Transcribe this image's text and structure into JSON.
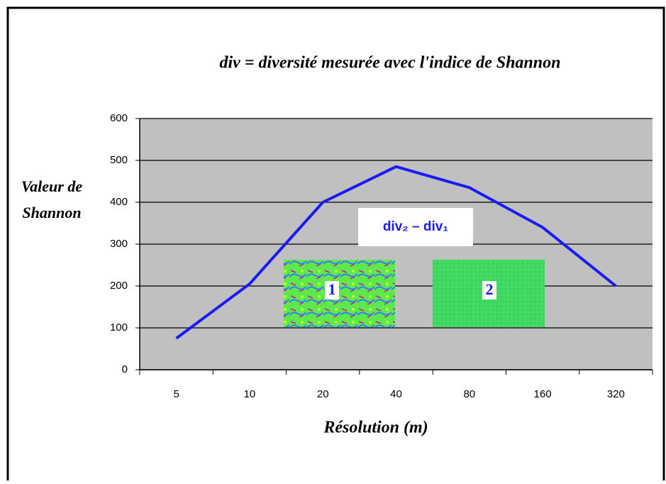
{
  "chart_data": {
    "type": "line",
    "title": "div = diversité mesurée avec l'indice de Shannon",
    "ylabel": [
      "Valeur de",
      "Shannon"
    ],
    "xlabel": "Résolution (m)",
    "categories": [
      "5",
      "10",
      "20",
      "40",
      "80",
      "160",
      "320"
    ],
    "series": [
      {
        "name": "div",
        "color": "#1a1aff",
        "values": [
          75,
          205,
          400,
          485,
          435,
          340,
          200
        ]
      }
    ],
    "ylim": [
      0,
      600
    ],
    "yticks": [
      0,
      100,
      200,
      300,
      400,
      500,
      600
    ],
    "grid": true,
    "annotation": "div₂ – div₁",
    "insets": [
      {
        "label": "1"
      },
      {
        "label": "2"
      }
    ]
  }
}
